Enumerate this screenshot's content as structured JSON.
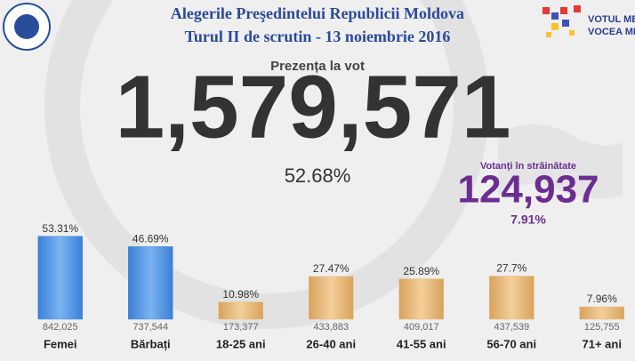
{
  "header": {
    "title": "Alegerile Preşedintelui Republicii Moldova",
    "subtitle": "Turul II de scrutin - 13 noiembrie 2016"
  },
  "brand": {
    "line1": "VOTUL MEU,",
    "line2": "VOCEA MEA!"
  },
  "turnout": {
    "label": "Prezența la vot",
    "total": "1,579,571",
    "percent": "52.68%"
  },
  "abroad": {
    "label": "Votanți în străinătate",
    "total": "124,937",
    "percent": "7.91%"
  },
  "chart_data": {
    "type": "bar",
    "categories": [
      "Femei",
      "Bărbați",
      "18-25 ani",
      "26-40 ani",
      "41-55 ani",
      "56-70 ani",
      "71+ ani"
    ],
    "values": [
      53.31,
      46.69,
      10.98,
      27.47,
      25.89,
      27.7,
      7.96
    ],
    "value_labels": [
      "53.31%",
      "46.69%",
      "10.98%",
      "27.47%",
      "25.89%",
      "27.7%",
      "7.96%"
    ],
    "counts": [
      "842,025",
      "737,544",
      "173,377",
      "433,883",
      "409,017",
      "437,539",
      "125,755"
    ],
    "colors": [
      "#4a90e2",
      "#4a90e2",
      "#e8b878",
      "#e8b878",
      "#e8b878",
      "#e8b878",
      "#e8b878"
    ]
  }
}
